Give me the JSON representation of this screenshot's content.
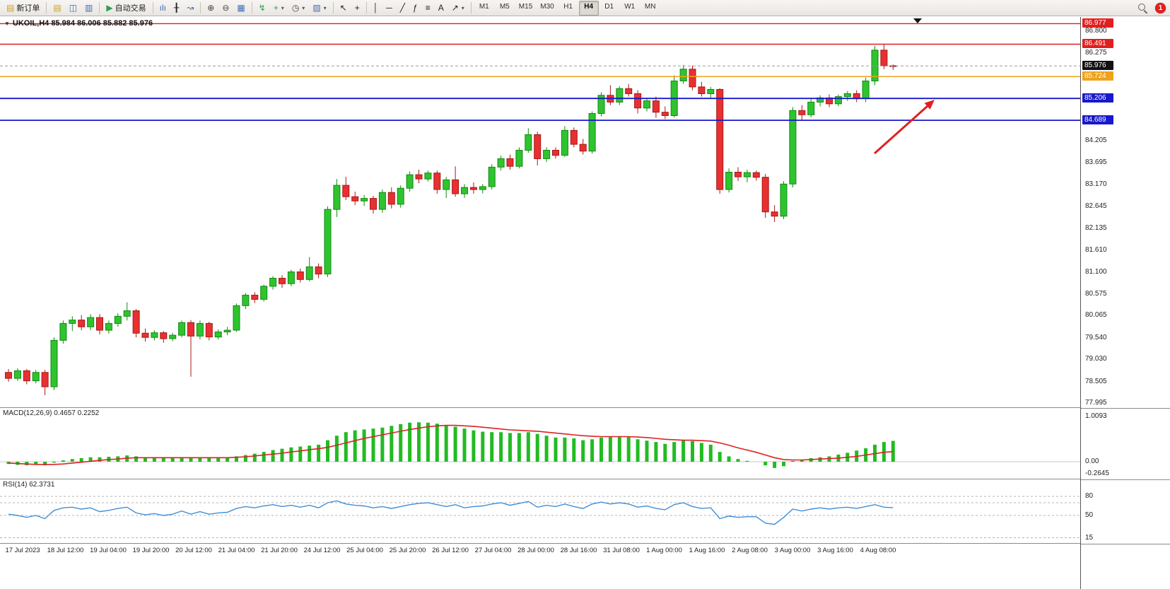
{
  "toolbar": {
    "items": [
      {
        "type": "button",
        "name": "new-order-button",
        "glyph": "▤",
        "glyph_color": "#c9a227",
        "label": "新订单"
      },
      {
        "type": "sep"
      },
      {
        "type": "icon",
        "name": "profiles-icon",
        "glyph": "▤",
        "glyph_color": "#c9a227"
      },
      {
        "type": "icon",
        "name": "market-watch-icon",
        "glyph": "◫",
        "glyph_color": "#3b6fb5"
      },
      {
        "type": "icon",
        "name": "terminal-icon",
        "glyph": "▥",
        "glyph_color": "#3b6fb5"
      },
      {
        "type": "sep"
      },
      {
        "type": "button",
        "name": "autotrade-button",
        "glyph": "▶",
        "glyph_color": "#2e9e4f",
        "label": "自动交易"
      },
      {
        "type": "sep"
      },
      {
        "type": "icon",
        "name": "bar-chart-icon",
        "glyph": "ılı",
        "glyph_color": "#3b6fb5"
      },
      {
        "type": "icon",
        "name": "candlestick-chart-icon",
        "glyph": "╂",
        "glyph_color": "#222222"
      },
      {
        "type": "icon",
        "name": "line-chart-icon",
        "glyph": "↝",
        "glyph_color": "#3b6fb5"
      },
      {
        "type": "sep"
      },
      {
        "type": "icon",
        "name": "zoom-in-icon",
        "glyph": "⊕",
        "glyph_color": "#444444"
      },
      {
        "type": "icon",
        "name": "zoom-out-icon",
        "glyph": "⊖",
        "glyph_color": "#444444"
      },
      {
        "type": "icon",
        "name": "tile-windows-icon",
        "glyph": "▦",
        "glyph_color": "#3b6fb5"
      },
      {
        "type": "sep"
      },
      {
        "type": "icon",
        "name": "indicators-icon",
        "glyph": "↯",
        "glyph_color": "#2e9e4f"
      },
      {
        "type": "icon",
        "name": "add-indicator-icon",
        "glyph": "+",
        "glyph_color": "#2e9e4f",
        "dropdown": true
      },
      {
        "type": "icon",
        "name": "periods-icon",
        "glyph": "◷",
        "glyph_color": "#444444",
        "dropdown": true
      },
      {
        "type": "icon",
        "name": "templates-icon",
        "glyph": "▨",
        "glyph_color": "#3b6fb5",
        "dropdown": true
      },
      {
        "type": "sep"
      },
      {
        "type": "icon",
        "name": "cursor-icon",
        "glyph": "↖",
        "glyph_color": "#222222"
      },
      {
        "type": "icon",
        "name": "crosshair-icon",
        "glyph": "+",
        "glyph_color": "#222222"
      },
      {
        "type": "sep"
      },
      {
        "type": "icon",
        "name": "vertical-line-icon",
        "glyph": "│",
        "glyph_color": "#222222"
      },
      {
        "type": "icon",
        "name": "horizontal-line-icon",
        "glyph": "─",
        "glyph_color": "#222222"
      },
      {
        "type": "icon",
        "name": "trendline-icon",
        "glyph": "╱",
        "glyph_color": "#222222"
      },
      {
        "type": "icon",
        "name": "fibonacci-icon",
        "glyph": "ƒ",
        "glyph_color": "#222222"
      },
      {
        "type": "icon",
        "name": "channel-icon",
        "glyph": "≡",
        "glyph_color": "#222222"
      },
      {
        "type": "icon",
        "name": "text-icon",
        "glyph": "A",
        "glyph_color": "#222222"
      },
      {
        "type": "icon",
        "name": "arrows-icon",
        "glyph": "↗",
        "glyph_color": "#222222",
        "dropdown": true
      },
      {
        "type": "sep"
      }
    ],
    "timeframes": [
      "M1",
      "M5",
      "M15",
      "M30",
      "H1",
      "H4",
      "D1",
      "W1",
      "MN"
    ],
    "active_timeframe": "H4",
    "badge_count": "1"
  },
  "chart": {
    "symbol_label": "UKOIL,H4 85.984 86.006 85.882 85.976",
    "price_axis": [
      "86.800",
      "86.275",
      "84.205",
      "83.695",
      "83.170",
      "82.645",
      "82.135",
      "81.610",
      "81.100",
      "80.575",
      "80.065",
      "79.540",
      "79.030",
      "78.505",
      "77.995"
    ],
    "price_tags": [
      {
        "value": "86.977",
        "price": 86.977,
        "bg": "#e02020",
        "line": true,
        "lw": 1.4
      },
      {
        "value": "86.491",
        "price": 86.491,
        "bg": "#e02020",
        "line": true,
        "lw": 1.4
      },
      {
        "value": "85.976",
        "price": 85.976,
        "bg": "#111111",
        "line": true,
        "dash": true,
        "lw": 1,
        "line_color": "#999999"
      },
      {
        "value": "85.724",
        "price": 85.724,
        "bg": "#efa21a",
        "line": true,
        "lw": 1.5
      },
      {
        "value": "85.206",
        "price": 85.206,
        "bg": "#1818cc",
        "line": true,
        "lw": 1.8
      },
      {
        "value": "84.689",
        "price": 84.689,
        "bg": "#1818cc",
        "line": true,
        "lw": 1.8
      }
    ]
  },
  "macd": {
    "label": "MACD(12,26,9) 0.4657 0.2252",
    "axis": [
      "1.0093",
      "0.00",
      "-0.2645"
    ],
    "axis_values": [
      1.0093,
      0,
      -0.2645
    ]
  },
  "rsi": {
    "label": "RSI(14) 62.3731",
    "axis": [
      "80",
      "50",
      "15"
    ],
    "axis_values": [
      80,
      50,
      15
    ],
    "levels": [
      80,
      70,
      50,
      15
    ]
  },
  "time_axis": [
    "17 Jul 2023",
    "18 Jul 12:00",
    "19 Jul 04:00",
    "19 Jul 20:00",
    "20 Jul 12:00",
    "21 Jul 04:00",
    "21 Jul 20:00",
    "24 Jul 12:00",
    "25 Jul 04:00",
    "25 Jul 20:00",
    "26 Jul 12:00",
    "27 Jul 04:00",
    "28 Jul 00:00",
    "28 Jul 16:00",
    "31 Jul 08:00",
    "1 Aug 00:00",
    "1 Aug 16:00",
    "2 Aug 08:00",
    "3 Aug 00:00",
    "3 Aug 16:00",
    "4 Aug 08:00"
  ],
  "chart_data": {
    "type": "candlestick",
    "symbol": "UKOIL",
    "timeframe": "H4",
    "current_ohlc": {
      "open": "85.984",
      "high": "86.006",
      "low": "85.882",
      "close": "85.976"
    },
    "price_view": [
      77.895,
      87.135
    ],
    "ohlc": [
      [
        78.72,
        78.8,
        78.5,
        78.58
      ],
      [
        78.58,
        78.82,
        78.52,
        78.76
      ],
      [
        78.76,
        78.8,
        78.44,
        78.52
      ],
      [
        78.52,
        78.78,
        78.46,
        78.72
      ],
      [
        78.72,
        78.78,
        78.18,
        78.38
      ],
      [
        78.38,
        79.55,
        78.3,
        79.48
      ],
      [
        79.48,
        79.95,
        79.4,
        79.88
      ],
      [
        79.88,
        80.05,
        79.7,
        79.96
      ],
      [
        79.96,
        80.08,
        79.72,
        79.8
      ],
      [
        79.8,
        80.1,
        79.72,
        80.02
      ],
      [
        80.02,
        80.1,
        79.62,
        79.72
      ],
      [
        79.72,
        79.95,
        79.64,
        79.88
      ],
      [
        79.88,
        80.12,
        79.8,
        80.05
      ],
      [
        80.05,
        80.38,
        79.95,
        80.18
      ],
      [
        80.18,
        80.22,
        79.55,
        79.65
      ],
      [
        79.65,
        79.76,
        79.45,
        79.55
      ],
      [
        79.55,
        79.72,
        79.48,
        79.66
      ],
      [
        79.66,
        79.7,
        79.42,
        79.52
      ],
      [
        79.52,
        79.66,
        79.46,
        79.6
      ],
      [
        79.6,
        79.95,
        79.55,
        79.9
      ],
      [
        79.9,
        79.96,
        78.62,
        79.58
      ],
      [
        79.58,
        79.95,
        79.5,
        79.88
      ],
      [
        79.88,
        79.92,
        79.48,
        79.56
      ],
      [
        79.56,
        79.74,
        79.5,
        79.68
      ],
      [
        79.68,
        79.8,
        79.6,
        79.72
      ],
      [
        79.72,
        80.35,
        79.68,
        80.3
      ],
      [
        80.3,
        80.6,
        80.22,
        80.55
      ],
      [
        80.55,
        80.62,
        80.36,
        80.45
      ],
      [
        80.45,
        80.8,
        80.4,
        80.76
      ],
      [
        80.76,
        81.0,
        80.68,
        80.95
      ],
      [
        80.95,
        81.02,
        80.72,
        80.82
      ],
      [
        80.82,
        81.15,
        80.76,
        81.1
      ],
      [
        81.1,
        81.18,
        80.85,
        80.92
      ],
      [
        80.92,
        81.45,
        80.88,
        81.22
      ],
      [
        81.22,
        81.3,
        80.95,
        81.05
      ],
      [
        81.05,
        82.65,
        80.98,
        82.58
      ],
      [
        82.58,
        83.3,
        82.4,
        83.15
      ],
      [
        83.15,
        83.35,
        82.8,
        82.88
      ],
      [
        82.88,
        83.0,
        82.68,
        82.78
      ],
      [
        82.78,
        82.92,
        82.66,
        82.84
      ],
      [
        82.84,
        82.9,
        82.48,
        82.58
      ],
      [
        82.58,
        83.05,
        82.5,
        82.98
      ],
      [
        82.98,
        83.1,
        82.6,
        82.7
      ],
      [
        82.7,
        83.15,
        82.62,
        83.08
      ],
      [
        83.08,
        83.48,
        83.0,
        83.4
      ],
      [
        83.4,
        83.52,
        83.2,
        83.3
      ],
      [
        83.3,
        83.5,
        83.24,
        83.44
      ],
      [
        83.44,
        83.5,
        82.95,
        83.05
      ],
      [
        83.05,
        83.35,
        82.85,
        83.28
      ],
      [
        83.28,
        83.6,
        82.88,
        82.95
      ],
      [
        82.95,
        83.18,
        82.85,
        83.1
      ],
      [
        83.1,
        83.22,
        82.95,
        83.05
      ],
      [
        83.05,
        83.18,
        82.96,
        83.12
      ],
      [
        83.12,
        83.65,
        83.05,
        83.58
      ],
      [
        83.58,
        83.85,
        83.5,
        83.78
      ],
      [
        83.78,
        83.88,
        83.52,
        83.6
      ],
      [
        83.6,
        84.05,
        83.55,
        83.98
      ],
      [
        83.98,
        84.5,
        83.92,
        84.35
      ],
      [
        84.35,
        84.42,
        83.62,
        83.78
      ],
      [
        83.78,
        84.05,
        83.7,
        83.98
      ],
      [
        83.98,
        84.05,
        83.78,
        83.86
      ],
      [
        83.86,
        84.55,
        83.82,
        84.45
      ],
      [
        84.45,
        84.52,
        84.05,
        84.12
      ],
      [
        84.12,
        84.25,
        83.88,
        83.96
      ],
      [
        83.96,
        84.9,
        83.9,
        84.85
      ],
      [
        84.85,
        85.35,
        84.78,
        85.28
      ],
      [
        85.28,
        85.52,
        85.05,
        85.12
      ],
      [
        85.12,
        85.5,
        85.05,
        85.44
      ],
      [
        85.44,
        85.55,
        85.25,
        85.32
      ],
      [
        85.32,
        85.4,
        84.85,
        84.98
      ],
      [
        84.98,
        85.22,
        84.9,
        85.15
      ],
      [
        85.15,
        85.25,
        84.75,
        84.88
      ],
      [
        84.88,
        85.02,
        84.72,
        84.8
      ],
      [
        84.8,
        85.75,
        84.76,
        85.62
      ],
      [
        85.62,
        86.0,
        85.55,
        85.9
      ],
      [
        85.9,
        85.98,
        85.4,
        85.48
      ],
      [
        85.48,
        85.6,
        85.25,
        85.32
      ],
      [
        85.32,
        85.48,
        85.22,
        85.42
      ],
      [
        85.42,
        85.45,
        82.95,
        83.05
      ],
      [
        83.05,
        83.55,
        82.98,
        83.46
      ],
      [
        83.46,
        83.58,
        83.25,
        83.35
      ],
      [
        83.35,
        83.52,
        83.22,
        83.45
      ],
      [
        83.45,
        83.5,
        83.26,
        83.34
      ],
      [
        83.34,
        83.42,
        82.38,
        82.52
      ],
      [
        82.52,
        82.68,
        82.28,
        82.42
      ],
      [
        82.42,
        83.25,
        82.35,
        83.18
      ],
      [
        83.18,
        85.0,
        83.1,
        84.92
      ],
      [
        84.92,
        85.05,
        84.68,
        84.82
      ],
      [
        84.82,
        85.2,
        84.76,
        85.12
      ],
      [
        85.12,
        85.28,
        85.02,
        85.22
      ],
      [
        85.22,
        85.3,
        85.0,
        85.08
      ],
      [
        85.08,
        85.3,
        85.02,
        85.25
      ],
      [
        85.25,
        85.38,
        85.15,
        85.32
      ],
      [
        85.32,
        85.4,
        85.12,
        85.2
      ],
      [
        85.2,
        85.7,
        85.12,
        85.62
      ],
      [
        85.62,
        86.45,
        85.52,
        86.35
      ],
      [
        86.35,
        86.49,
        85.9,
        85.98
      ],
      [
        85.98,
        86.01,
        85.88,
        85.976
      ]
    ],
    "indicators": [
      {
        "name": "MACD(12,26,9)",
        "type": "histogram+line",
        "view": [
          -0.378,
          1.1985
        ],
        "histogram": [
          -0.05,
          -0.07,
          -0.08,
          -0.06,
          -0.08,
          -0.02,
          0.03,
          0.06,
          0.08,
          0.1,
          0.1,
          0.11,
          0.12,
          0.14,
          0.12,
          0.1,
          0.09,
          0.08,
          0.08,
          0.09,
          0.08,
          0.09,
          0.09,
          0.09,
          0.1,
          0.12,
          0.15,
          0.18,
          0.22,
          0.26,
          0.29,
          0.32,
          0.34,
          0.36,
          0.38,
          0.48,
          0.58,
          0.66,
          0.7,
          0.72,
          0.74,
          0.76,
          0.8,
          0.84,
          0.87,
          0.88,
          0.87,
          0.85,
          0.82,
          0.78,
          0.74,
          0.7,
          0.67,
          0.66,
          0.66,
          0.64,
          0.64,
          0.66,
          0.62,
          0.58,
          0.54,
          0.54,
          0.52,
          0.48,
          0.5,
          0.54,
          0.56,
          0.56,
          0.55,
          0.5,
          0.47,
          0.44,
          0.4,
          0.44,
          0.48,
          0.46,
          0.42,
          0.38,
          0.22,
          0.12,
          0.06,
          0.02,
          0.0,
          -0.08,
          -0.14,
          -0.1,
          0.02,
          0.04,
          0.08,
          0.1,
          0.12,
          0.16,
          0.2,
          0.25,
          0.3,
          0.38,
          0.44,
          0.4657
        ],
        "signal": [
          -0.03,
          -0.04,
          -0.05,
          -0.06,
          -0.06,
          -0.06,
          -0.05,
          -0.03,
          -0.01,
          0.01,
          0.03,
          0.05,
          0.06,
          0.08,
          0.09,
          0.09,
          0.09,
          0.09,
          0.09,
          0.09,
          0.09,
          0.09,
          0.09,
          0.09,
          0.09,
          0.1,
          0.11,
          0.13,
          0.15,
          0.17,
          0.19,
          0.22,
          0.24,
          0.27,
          0.29,
          0.32,
          0.37,
          0.42,
          0.47,
          0.52,
          0.56,
          0.6,
          0.64,
          0.68,
          0.72,
          0.75,
          0.78,
          0.8,
          0.81,
          0.81,
          0.8,
          0.79,
          0.77,
          0.75,
          0.73,
          0.71,
          0.7,
          0.69,
          0.68,
          0.66,
          0.64,
          0.62,
          0.6,
          0.58,
          0.57,
          0.56,
          0.56,
          0.56,
          0.56,
          0.55,
          0.54,
          0.52,
          0.5,
          0.49,
          0.48,
          0.48,
          0.47,
          0.46,
          0.42,
          0.37,
          0.31,
          0.26,
          0.21,
          0.15,
          0.09,
          0.05,
          0.04,
          0.04,
          0.05,
          0.06,
          0.07,
          0.08,
          0.1,
          0.12,
          0.15,
          0.18,
          0.21,
          0.2252
        ]
      },
      {
        "name": "RSI(14)",
        "type": "line",
        "view": [
          6.7,
          106.7
        ],
        "values": [
          52,
          50,
          47,
          50,
          45,
          58,
          62,
          63,
          60,
          62,
          56,
          58,
          61,
          63,
          54,
          51,
          53,
          50,
          52,
          57,
          52,
          56,
          52,
          54,
          55,
          61,
          64,
          62,
          65,
          67,
          64,
          66,
          63,
          66,
          62,
          70,
          73,
          68,
          66,
          65,
          62,
          64,
          61,
          64,
          67,
          69,
          70,
          67,
          64,
          67,
          62,
          64,
          65,
          68,
          70,
          66,
          69,
          72,
          63,
          66,
          64,
          68,
          64,
          61,
          68,
          71,
          68,
          70,
          68,
          63,
          65,
          61,
          59,
          67,
          70,
          64,
          61,
          62,
          45,
          49,
          47,
          48,
          48,
          38,
          36,
          47,
          60,
          57,
          60,
          62,
          60,
          62,
          63,
          61,
          64,
          67,
          63,
          62.37
        ]
      }
    ],
    "colors": {
      "up_fill": "#2fc42f",
      "up_stroke": "#118a11",
      "down_fill": "#e83030",
      "down_stroke": "#a81818",
      "macd_hist": "#22bb22",
      "macd_signal": "#dd2222",
      "rsi_line": "#3f8fd8",
      "annotation_arrow": "#e02020"
    }
  }
}
